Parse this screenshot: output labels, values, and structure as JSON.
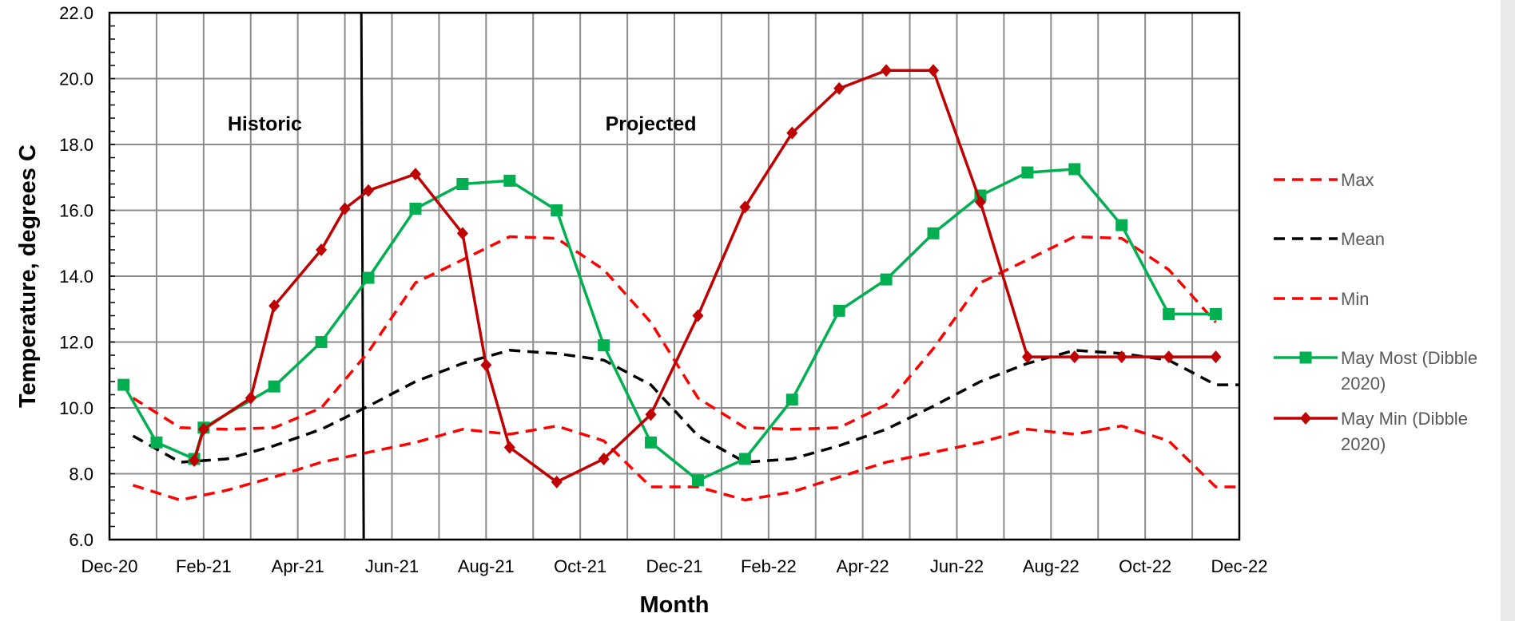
{
  "chart_data": {
    "type": "line",
    "title": "",
    "xlabel": "Month",
    "ylabel": "Temperature, degrees C",
    "ylim": [
      6.0,
      22.0
    ],
    "y_ticks": [
      "6.0",
      "8.0",
      "10.0",
      "12.0",
      "14.0",
      "16.0",
      "18.0",
      "20.0",
      "22.0"
    ],
    "x_tick_labels": [
      "Dec-20",
      "Feb-21",
      "Apr-21",
      "Jun-21",
      "Aug-21",
      "Oct-21",
      "Dec-21",
      "Feb-22",
      "Apr-22",
      "Jun-22",
      "Aug-22",
      "Oct-22",
      "Dec-22"
    ],
    "grid": true,
    "legend_position": "right",
    "divider_month": "May-21",
    "annotations": [
      {
        "text": "Historic",
        "at_month_index": 3.3,
        "y": 18.5
      },
      {
        "text": "Projected",
        "at_month_index": 11.5,
        "y": 18.5
      }
    ],
    "series": [
      {
        "name": "Max",
        "style": "dashed",
        "color": "#ff0000",
        "marker": "none",
        "x": [
          0.5,
          1.5,
          2.5,
          3.5,
          4.5,
          5.5,
          6.5,
          7.5,
          8.5,
          9.5,
          10.5,
          11.5,
          12.5,
          13.5,
          14.5,
          15.5,
          16.5,
          17.5,
          18.5,
          19.5,
          20.5,
          21.5,
          22.5,
          23.5
        ],
        "values": [
          10.3,
          9.4,
          9.35,
          9.4,
          10.0,
          11.7,
          13.8,
          14.5,
          15.2,
          15.15,
          14.2,
          12.6,
          10.3,
          9.4,
          9.35,
          9.4,
          10.1,
          11.8,
          13.8,
          14.5,
          15.2,
          15.15,
          14.2,
          12.6
        ]
      },
      {
        "name": "Mean",
        "style": "dashed",
        "color": "#000000",
        "marker": "none",
        "x": [
          0.5,
          1.5,
          2.5,
          3.5,
          4.5,
          5.5,
          6.5,
          7.5,
          8.5,
          9.5,
          10.5,
          11.5,
          12.5,
          13.5,
          14.5,
          15.5,
          16.5,
          17.5,
          18.5,
          19.5,
          20.5,
          21.5,
          22.5,
          23.5,
          24.0
        ],
        "values": [
          9.15,
          8.35,
          8.45,
          8.85,
          9.35,
          10.05,
          10.8,
          11.35,
          11.75,
          11.65,
          11.45,
          10.7,
          9.15,
          8.35,
          8.45,
          8.85,
          9.35,
          10.05,
          10.8,
          11.35,
          11.75,
          11.65,
          11.45,
          10.7,
          10.7
        ]
      },
      {
        "name": "Min",
        "style": "dashed",
        "color": "#ff0000",
        "marker": "none",
        "x": [
          0.5,
          1.5,
          2.5,
          3.5,
          4.5,
          5.5,
          6.5,
          7.5,
          8.5,
          9.5,
          10.5,
          11.5,
          12.5,
          13.5,
          14.5,
          15.5,
          16.5,
          17.5,
          18.5,
          19.5,
          20.5,
          21.5,
          22.5,
          23.5,
          24.0
        ],
        "values": [
          7.65,
          7.2,
          7.5,
          7.9,
          8.35,
          8.65,
          8.95,
          9.35,
          9.2,
          9.45,
          9.0,
          7.6,
          7.6,
          7.2,
          7.45,
          7.9,
          8.35,
          8.65,
          8.95,
          9.35,
          9.2,
          9.45,
          9.0,
          7.6,
          7.6
        ]
      },
      {
        "name": "May Most (Dibble 2020)",
        "style": "solid",
        "color": "#00b050",
        "marker": "square",
        "x": [
          0.3,
          1.0,
          1.8,
          2.0,
          3.5,
          4.5,
          5.5,
          6.5,
          7.5,
          8.5,
          9.5,
          10.5,
          11.5,
          12.5,
          13.5,
          14.5,
          15.5,
          16.5,
          17.5,
          18.5,
          19.5,
          20.5,
          21.5,
          22.5,
          23.5
        ],
        "values": [
          10.7,
          8.95,
          8.45,
          9.4,
          10.65,
          12.0,
          13.95,
          16.05,
          16.8,
          16.9,
          16.0,
          11.9,
          8.95,
          7.8,
          8.45,
          10.25,
          12.95,
          13.9,
          15.3,
          16.45,
          17.15,
          17.25,
          15.55,
          12.85,
          12.85
        ]
      },
      {
        "name": "May Min (Dibble 2020)",
        "style": "solid",
        "color": "#c00000",
        "marker": "diamond",
        "x": [
          1.8,
          2.0,
          3.0,
          3.5,
          4.5,
          5.0,
          5.5,
          6.5,
          7.5,
          8.0,
          8.5,
          9.5,
          10.5,
          11.5,
          12.5,
          13.5,
          14.5,
          15.5,
          16.5,
          17.5,
          18.5,
          19.5,
          20.5,
          21.5,
          22.5,
          23.5
        ],
        "values": [
          8.4,
          9.35,
          10.3,
          13.1,
          14.8,
          16.05,
          16.6,
          17.1,
          15.3,
          11.3,
          8.8,
          7.75,
          8.45,
          9.8,
          12.8,
          16.1,
          18.35,
          19.7,
          20.25,
          20.25,
          16.25,
          11.55,
          11.55,
          11.55,
          11.55,
          11.55
        ]
      }
    ]
  }
}
